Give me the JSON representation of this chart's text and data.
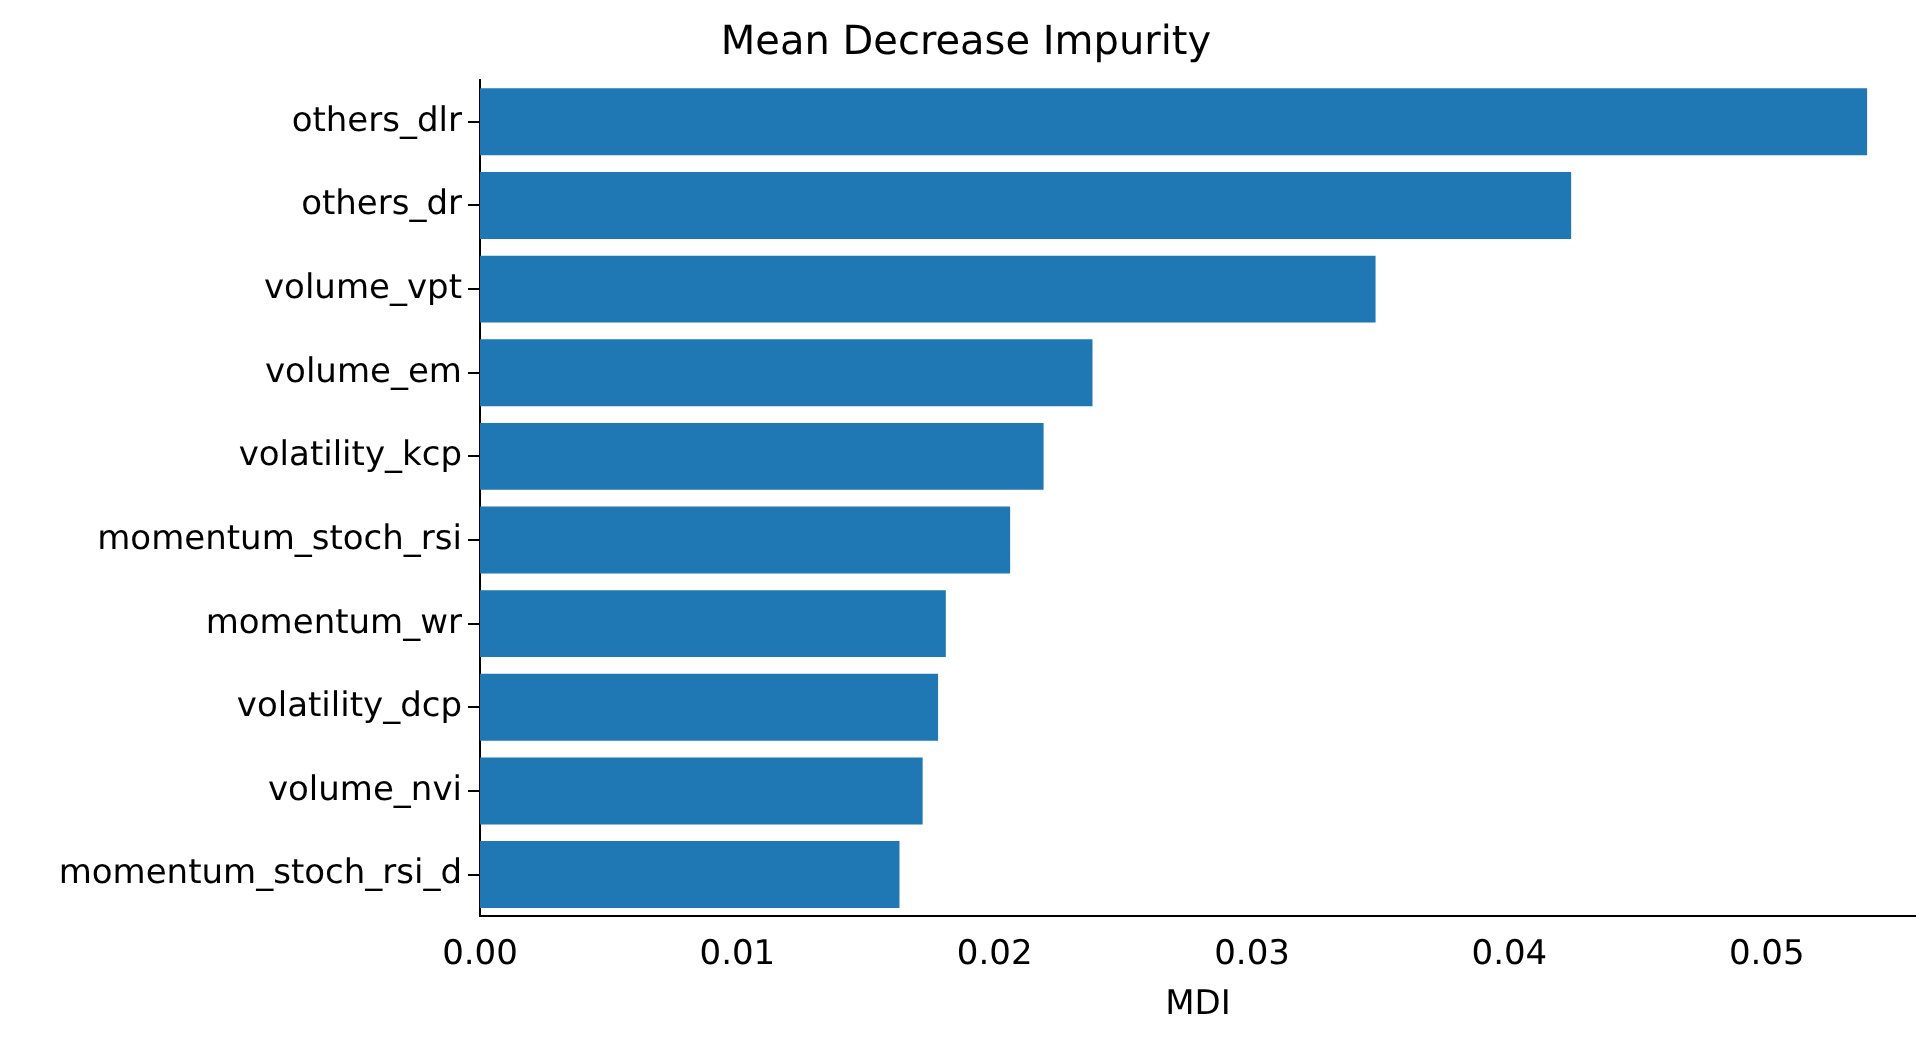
{
  "chart_data": {
    "type": "bar",
    "orientation": "horizontal",
    "title": "Mean Decrease Impurity",
    "xlabel": "MDI",
    "categories": [
      "others_dlr",
      "others_dr",
      "volume_vpt",
      "volume_em",
      "volatility_kcp",
      "momentum_stoch_rsi",
      "momentum_wr",
      "volatility_dcp",
      "volume_nvi",
      "momentum_stoch_rsi_d"
    ],
    "values": [
      0.0539,
      0.0424,
      0.0348,
      0.0238,
      0.0219,
      0.0206,
      0.0181,
      0.0178,
      0.0172,
      0.0163
    ],
    "color": "#1f77b4",
    "xlim": [
      0,
      0.0558
    ],
    "xticks": [
      {
        "value": 0,
        "label": "0.00"
      },
      {
        "value": 0.01,
        "label": "0.01"
      },
      {
        "value": 0.02,
        "label": "0.02"
      },
      {
        "value": 0.03,
        "label": "0.03"
      },
      {
        "value": 0.04,
        "label": "0.04"
      },
      {
        "value": 0.05,
        "label": "0.05"
      }
    ],
    "grid": false,
    "legend": false
  }
}
